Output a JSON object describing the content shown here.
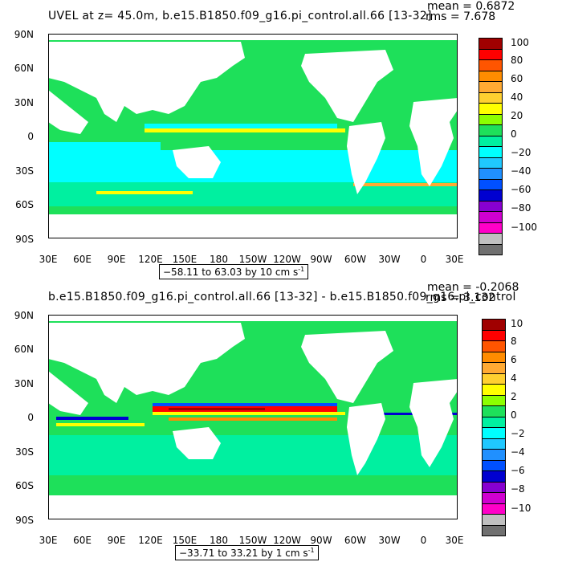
{
  "top": {
    "title": "UVEL at z=   45.0m, b.e15.B1850.f09_g16.pi_control.all.66 [13-32]",
    "stats": {
      "mean": "mean = 0.6872",
      "rms": "rms = 7.678"
    },
    "lat_labels": [
      "90N",
      "60N",
      "30N",
      "0",
      "30S",
      "60S",
      "90S"
    ],
    "lon_labels": [
      "30E",
      "60E",
      "90E",
      "120E",
      "150E",
      "180",
      "150W",
      "120W",
      "90W",
      "60W",
      "30W",
      "0",
      "30E"
    ],
    "range_text": "−58.11 to 63.03 by 10 cm s",
    "range_unit_exp": "-1",
    "colorbar": {
      "labels": [
        "100",
        "80",
        "60",
        "40",
        "20",
        "0",
        "−20",
        "−40",
        "−60",
        "−80",
        "−100"
      ],
      "colors": [
        "#a00000",
        "#ff0000",
        "#ff5500",
        "#ff8c00",
        "#ffaa33",
        "#ffd030",
        "#ffff00",
        "#8cff00",
        "#1ee05a",
        "#00f0a0",
        "#00ffff",
        "#20c8ff",
        "#2090ff",
        "#0050ff",
        "#0000d0",
        "#8800d0",
        "#d000d0",
        "#ff00c8",
        "#c0c0c0",
        "#707070"
      ]
    }
  },
  "bottom": {
    "title": "b.e15.B1850.f09_g16.pi_control.all.66 [13-32] - b.e15.B1850.f09_g16.pi_control",
    "stats": {
      "mean": "mean = -0.2068",
      "rms": "rms = 3.132"
    },
    "lat_labels": [
      "90N",
      "60N",
      "30N",
      "0",
      "30S",
      "60S",
      "90S"
    ],
    "lon_labels": [
      "30E",
      "60E",
      "90E",
      "120E",
      "150E",
      "180",
      "150W",
      "120W",
      "90W",
      "60W",
      "30W",
      "0",
      "30E"
    ],
    "range_text": "−33.71 to 33.21 by 1 cm s",
    "range_unit_exp": "-1",
    "colorbar": {
      "labels": [
        "10",
        "8",
        "6",
        "4",
        "2",
        "0",
        "−2",
        "−4",
        "−6",
        "−8",
        "−10"
      ],
      "colors": [
        "#a00000",
        "#ff0000",
        "#ff5500",
        "#ff8c00",
        "#ffaa33",
        "#ffd030",
        "#ffff00",
        "#8cff00",
        "#1ee05a",
        "#00f0a0",
        "#00ffff",
        "#20c8ff",
        "#2090ff",
        "#0050ff",
        "#0000d0",
        "#8800d0",
        "#d000d0",
        "#ff00c8",
        "#c0c0c0",
        "#707070"
      ]
    }
  }
}
